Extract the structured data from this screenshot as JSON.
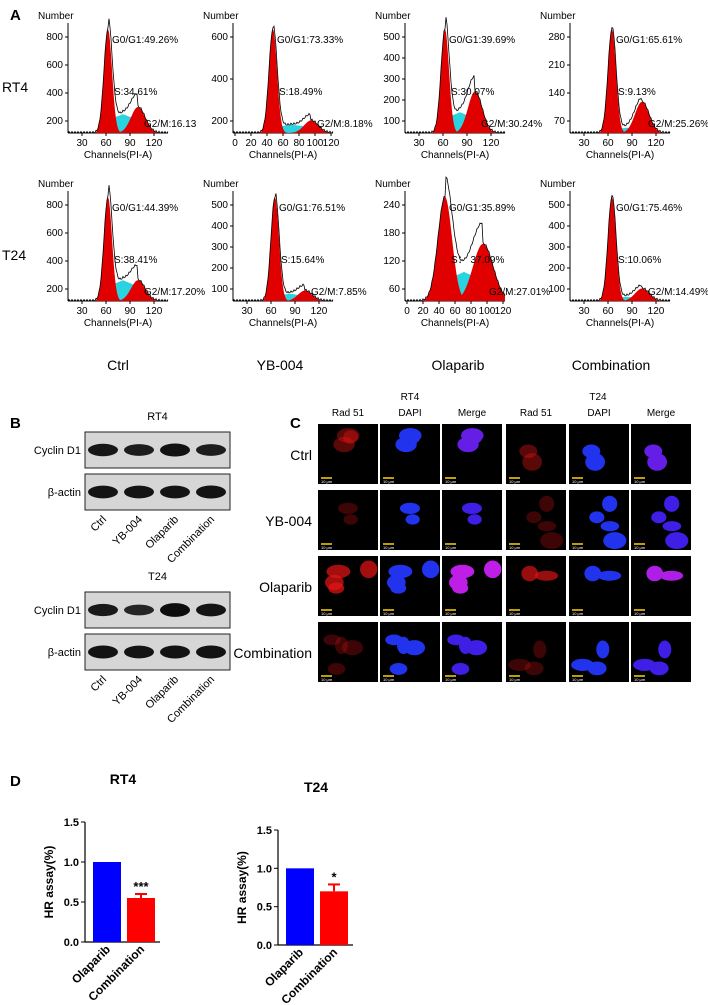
{
  "panel_labels": {
    "A": "A",
    "B": "B",
    "C": "C",
    "D": "D"
  },
  "panel_a": {
    "y_title": "Number",
    "x_title": "Channels(PI-A)",
    "row_labels": [
      "RT4",
      "T24"
    ],
    "condition_labels": [
      "Ctrl",
      "YB-004",
      "Olaparib",
      "Combination"
    ],
    "histograms": [
      {
        "row": 0,
        "col": 0,
        "xticks": [
          "30",
          "60",
          "90",
          "120"
        ],
        "yticks": [
          "800",
          "600",
          "400",
          "200"
        ],
        "g1": "G0/G1:49.26%",
        "s": "S:34.61%",
        "g2": "G2/M:16.13"
      },
      {
        "row": 0,
        "col": 1,
        "xticks": [
          "0",
          "20",
          "40",
          "60",
          "80",
          "100",
          "120"
        ],
        "yticks": [
          "600",
          "400",
          "200"
        ],
        "g1": "G0/G1:73.33%",
        "s": "S:18.49%",
        "g2": "G2/M:8.18%"
      },
      {
        "row": 0,
        "col": 2,
        "xticks": [
          "30",
          "60",
          "90",
          "120"
        ],
        "yticks": [
          "500",
          "400",
          "300",
          "200",
          "100"
        ],
        "g1": "G0/G1:39.69%",
        "s": "S:30.07%",
        "g2": "G2/M:30.24%"
      },
      {
        "row": 0,
        "col": 3,
        "xticks": [
          "30",
          "60",
          "90",
          "120"
        ],
        "yticks": [
          "280",
          "210",
          "140",
          "70"
        ],
        "g1": "G0/G1:65.61%",
        "s": "S:9.13%",
        "g2": "G2/M:25.26%"
      },
      {
        "row": 1,
        "col": 0,
        "xticks": [
          "30",
          "60",
          "90",
          "120"
        ],
        "yticks": [
          "800",
          "600",
          "400",
          "200"
        ],
        "g1": "G0/G1:44.39%",
        "s": "S:38.41%",
        "g2": "G2/M:17.20%"
      },
      {
        "row": 1,
        "col": 1,
        "xticks": [
          "30",
          "60",
          "90",
          "120"
        ],
        "yticks": [
          "500",
          "400",
          "300",
          "200",
          "100"
        ],
        "g1": "G0/G1:76.51%",
        "s": "S:15.64%",
        "g2": "G2/M:7.85%"
      },
      {
        "row": 1,
        "col": 2,
        "xticks": [
          "0",
          "20",
          "40",
          "60",
          "80",
          "100",
          "120"
        ],
        "yticks": [
          "240",
          "180",
          "120",
          "60"
        ],
        "g1": "G0/G1:35.89%",
        "s": "S： 37.09%",
        "g2": "G2/M:27.01%"
      },
      {
        "row": 1,
        "col": 3,
        "xticks": [
          "30",
          "60",
          "90",
          "120"
        ],
        "yticks": [
          "500",
          "400",
          "300",
          "200",
          "100"
        ],
        "g1": "G0/G1:75.46%",
        "s": "S:10.06%",
        "g2": "G2/M:14.49%"
      }
    ]
  },
  "panel_b": {
    "blots": [
      {
        "title": "RT4",
        "band_labels": [
          "Cyclin D1",
          "β-actin"
        ],
        "cyclin_intensity": [
          0.75,
          0.62,
          0.85,
          0.62
        ],
        "actin_intensity": [
          0.8,
          0.8,
          0.8,
          0.82
        ]
      },
      {
        "title": "T24",
        "band_labels": [
          "Cyclin D1",
          "β-actin"
        ],
        "cyclin_intensity": [
          0.7,
          0.45,
          0.95,
          0.8
        ],
        "actin_intensity": [
          0.82,
          0.8,
          0.82,
          0.85
        ]
      }
    ],
    "lane_labels": [
      "Ctrl",
      "YB-004",
      "Olaparib",
      "Combination"
    ]
  },
  "panel_c": {
    "cell_lines": [
      "RT4",
      "T24"
    ],
    "channels": [
      "Rad 51",
      "DAPI",
      "Merge"
    ],
    "rows": [
      "Ctrl",
      "YB-004",
      "Olaparib",
      "Combination"
    ],
    "scale_label": "10 μm"
  },
  "panel_d": {
    "charts": [
      {
        "title": "RT4",
        "ylabel": "HR assay(%)",
        "ylim": [
          0,
          1.5
        ],
        "yticks": [
          "0.0",
          "0.5",
          "1.0",
          "1.5"
        ],
        "categories": [
          "Olaparib",
          "Combination"
        ],
        "values": [
          1.0,
          0.55
        ],
        "errors": [
          0,
          0.05
        ],
        "colors": [
          "#0000ff",
          "#ff0000"
        ],
        "sig": [
          "",
          "***"
        ]
      },
      {
        "title": "T24",
        "ylabel": "HR assay(%)",
        "ylim": [
          0,
          1.5
        ],
        "yticks": [
          "0.0",
          "0.5",
          "1.0",
          "1.5"
        ],
        "categories": [
          "Olaparib",
          "Combination"
        ],
        "values": [
          1.0,
          0.7
        ],
        "errors": [
          0,
          0.09
        ],
        "colors": [
          "#0000ff",
          "#ff0000"
        ],
        "sig": [
          "",
          "*"
        ]
      }
    ]
  },
  "chart_data": [
    {
      "type": "bar",
      "title": "RT4",
      "ylabel": "HR assay(%)",
      "categories": [
        "Olaparib",
        "Combination"
      ],
      "values": [
        1.0,
        0.55
      ],
      "ylim": [
        0,
        1.5
      ]
    },
    {
      "type": "bar",
      "title": "T24",
      "ylabel": "HR assay(%)",
      "categories": [
        "Olaparib",
        "Combination"
      ],
      "values": [
        1.0,
        0.7
      ],
      "ylim": [
        0,
        1.5
      ]
    }
  ]
}
